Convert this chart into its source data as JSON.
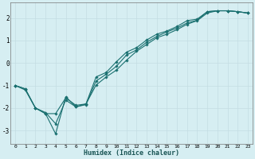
{
  "xlabel": "Humidex (Indice chaleur)",
  "background_color": "#d6eef2",
  "grid_color": "#c4dde3",
  "line_color": "#1a7070",
  "xlim": [
    -0.5,
    23.5
  ],
  "ylim": [
    -3.6,
    2.7
  ],
  "yticks": [
    -3,
    -2,
    -1,
    0,
    1,
    2
  ],
  "xticks": [
    0,
    1,
    2,
    3,
    4,
    5,
    6,
    7,
    8,
    9,
    10,
    11,
    12,
    13,
    14,
    15,
    16,
    17,
    18,
    19,
    20,
    21,
    22,
    23
  ],
  "line1_x": [
    0,
    1,
    2,
    3,
    4,
    5,
    6,
    7,
    8,
    9,
    10,
    11,
    12,
    13,
    14,
    15,
    16,
    17,
    18,
    19,
    20,
    21,
    22,
    23
  ],
  "line1_y": [
    -1.0,
    -1.2,
    -2.0,
    -2.2,
    -2.7,
    -1.65,
    -1.95,
    -1.85,
    -0.8,
    -0.5,
    -0.15,
    0.35,
    0.58,
    0.92,
    1.18,
    1.38,
    1.55,
    1.78,
    1.9,
    2.28,
    2.32,
    2.32,
    2.28,
    2.22
  ],
  "line2_x": [
    0,
    1,
    2,
    3,
    4,
    5,
    6,
    7,
    8,
    9,
    10,
    11,
    12,
    13,
    14,
    15,
    16,
    17,
    18,
    19,
    20,
    21,
    22,
    23
  ],
  "line2_y": [
    -1.0,
    -1.15,
    -2.0,
    -2.25,
    -2.25,
    -1.55,
    -1.88,
    -1.82,
    -0.62,
    -0.42,
    0.05,
    0.48,
    0.68,
    1.02,
    1.28,
    1.42,
    1.62,
    1.88,
    1.95,
    2.28,
    2.32,
    2.32,
    2.28,
    2.22
  ],
  "line3_x": [
    0,
    1,
    2,
    3,
    4,
    5,
    6,
    7,
    8,
    9,
    10,
    11,
    12,
    13,
    14,
    15,
    16,
    17,
    18,
    19,
    20,
    21,
    22,
    23
  ],
  "line3_y": [
    -1.0,
    -1.15,
    -2.0,
    -2.25,
    -3.15,
    -1.5,
    -1.95,
    -1.82,
    -0.98,
    -0.62,
    -0.32,
    0.12,
    0.52,
    0.82,
    1.12,
    1.28,
    1.48,
    1.72,
    1.88,
    2.22,
    2.32,
    2.32,
    2.28,
    2.22
  ]
}
